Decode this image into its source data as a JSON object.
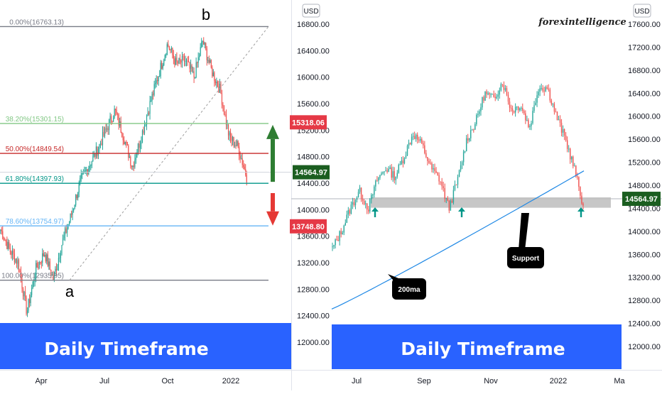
{
  "left_panel": {
    "currency": "USD",
    "banner": "Daily Timeframe",
    "x_ticks": [
      "Apr",
      "Jul",
      "Oct",
      "2022"
    ],
    "y_ticks": [
      "16800.00",
      "16400.00",
      "16000.00",
      "15600.00",
      "15200.00",
      "14800.00",
      "14400.00",
      "14000.00",
      "13600.00",
      "13200.00",
      "12800.00",
      "12400.00",
      "12000.00"
    ],
    "point_a": "a",
    "point_b": "b",
    "fib_levels": [
      {
        "label": "0.00%(16763.13)",
        "value": 16763.13,
        "color": "#787b86"
      },
      {
        "label": "38.20%(15301.15)",
        "value": 15301.15,
        "color": "#81c784"
      },
      {
        "label": "50.00%(14849.54)",
        "value": 14849.54,
        "color": "#c62828"
      },
      {
        "label": "61.80%(14397.93)",
        "value": 14397.93,
        "color": "#009688"
      },
      {
        "label": "78.60%(13754.97)",
        "value": 13754.97,
        "color": "#64b5f6"
      },
      {
        "label": "100.00%(12935.95)",
        "value": 12935.95,
        "color": "#787b86"
      }
    ],
    "price_badges": [
      {
        "label": "15318.06",
        "value": 15318.06,
        "color": "#e53946"
      },
      {
        "label": "14564.97",
        "value": 14564.97,
        "color": "#1b5e20"
      },
      {
        "label": "13748.80",
        "value": 13748.8,
        "color": "#e53946"
      }
    ],
    "arrows": [
      {
        "direction": "up",
        "color": "#2e7d32",
        "from": 14420,
        "to": 15280
      },
      {
        "direction": "down",
        "color": "#e53935",
        "from": 14250,
        "to": 13760
      }
    ]
  },
  "right_panel": {
    "currency": "USD",
    "watermark": "forexintelligence",
    "banner": "Daily Timeframe",
    "x_ticks": [
      "Jul",
      "Sep",
      "Nov",
      "2022",
      "Ma"
    ],
    "y_ticks": [
      "17600.00",
      "17200.00",
      "16800.00",
      "16400.00",
      "16000.00",
      "15600.00",
      "15200.00",
      "14800.00",
      "14400.00",
      "14000.00",
      "13600.00",
      "13200.00",
      "12800.00",
      "12400.00",
      "12000.00"
    ],
    "price_badge": {
      "label": "14564.97",
      "value": 14564.97,
      "color": "#1b5e20"
    },
    "support_zone": {
      "low": 14410,
      "high": 14590
    },
    "callouts": [
      "Support",
      "200ma"
    ],
    "support_arrows": 3
  },
  "colors": {
    "up": "#26a69a",
    "down": "#ef5350",
    "banner": "#2962ff",
    "ma": "#1e88e5"
  }
}
